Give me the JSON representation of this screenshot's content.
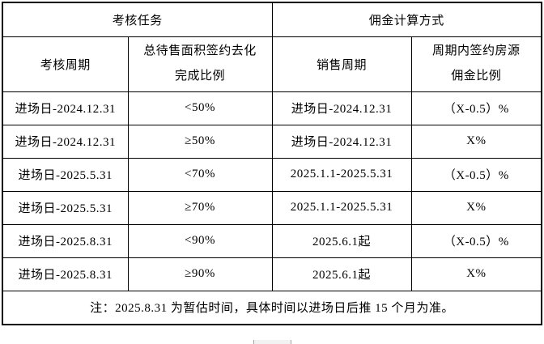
{
  "colors": {
    "border": "#000000",
    "background": "#ffffff",
    "scrollbar_fill": "#f2f2f2",
    "scrollbar_edge": "#a6a6a6"
  },
  "table": {
    "header_row1": [
      {
        "label": "考核任务"
      },
      {
        "label": "佣金计算方式"
      }
    ],
    "header_row2": [
      {
        "label": "考核周期"
      },
      {
        "line1": "总待售面积签约去化",
        "line2": "完成比例"
      },
      {
        "label": "销售周期"
      },
      {
        "line1": "周期内签约房源",
        "line2": "佣金比例"
      }
    ],
    "rows": [
      {
        "assessment_period": "进场日-2024.12.31",
        "completion_ratio": "<50%",
        "sales_period": "进场日-2024.12.31",
        "commission_rate": "（X-0.5）%"
      },
      {
        "assessment_period": "进场日-2024.12.31",
        "completion_ratio": "≥50%",
        "sales_period": "进场日-2024.12.31",
        "commission_rate": "X%"
      },
      {
        "assessment_period": "进场日-2025.5.31",
        "completion_ratio": "<70%",
        "sales_period": "2025.1.1-2025.5.31",
        "commission_rate": "（X-0.5）%"
      },
      {
        "assessment_period": "进场日-2025.5.31",
        "completion_ratio": "≥70%",
        "sales_period": "2025.1.1-2025.5.31",
        "commission_rate": "X%"
      },
      {
        "assessment_period": "进场日-2025.8.31",
        "completion_ratio": "<90%",
        "sales_period": "2025.6.1起",
        "commission_rate": "（X-0.5）%"
      },
      {
        "assessment_period": "进场日-2025.8.31",
        "completion_ratio": "≥90%",
        "sales_period": "2025.6.1起",
        "commission_rate": "X%"
      }
    ],
    "note": "注：2025.8.31 为暂估时间，具体时间以进场日后推 15 个月为准。"
  }
}
